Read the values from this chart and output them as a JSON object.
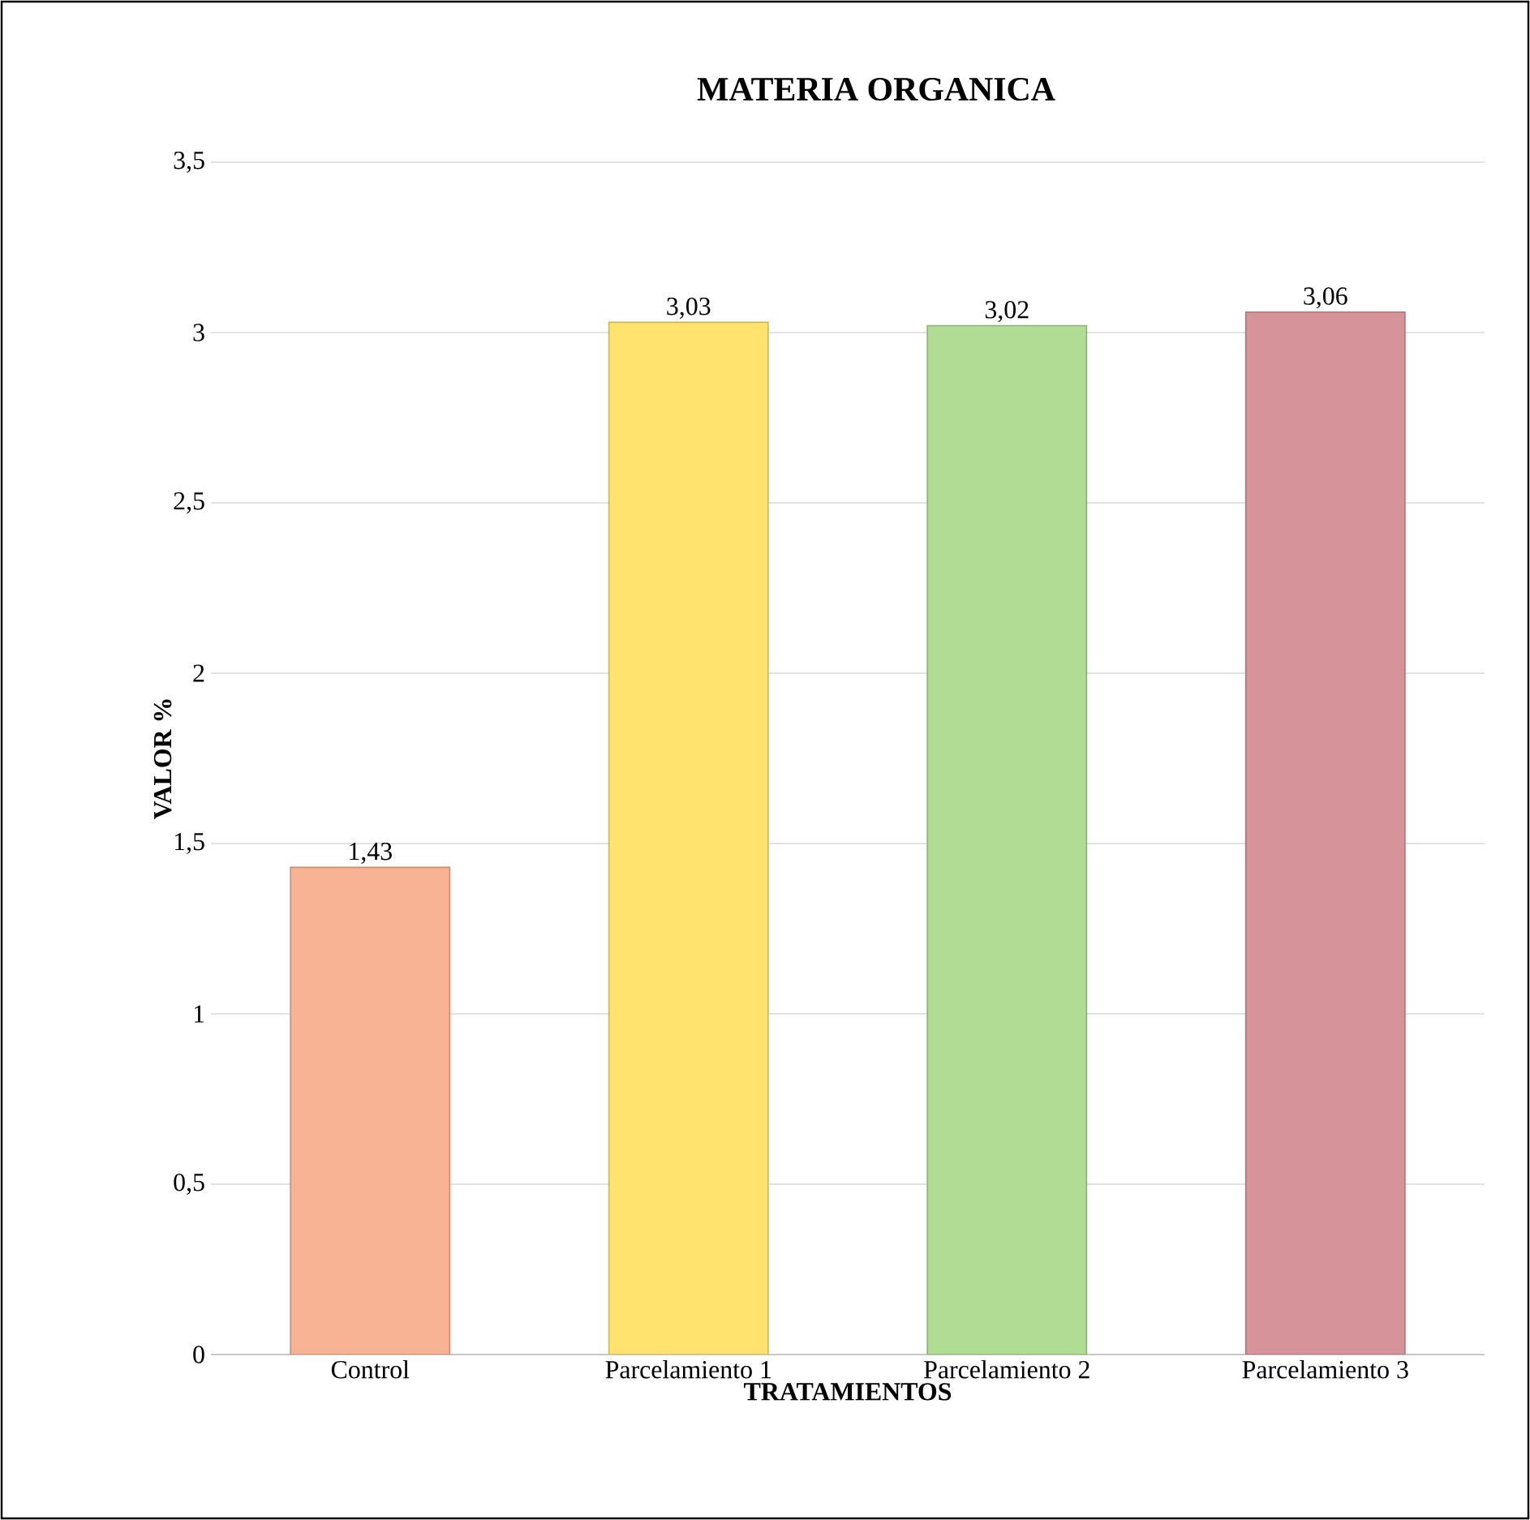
{
  "chart_data": {
    "type": "bar",
    "title": "MATERIA ORGANICA",
    "xlabel": "TRATAMIENTOS",
    "ylabel": "VALOR %",
    "categories": [
      "Control",
      "Parcelamiento 1",
      "Parcelamiento 2",
      "Parcelamiento 3"
    ],
    "values": [
      1.43,
      3.03,
      3.02,
      3.06
    ],
    "colors": [
      "#f8b394",
      "#ffe36e",
      "#b0dc94",
      "#d6939a"
    ],
    "value_labels": [
      "1,43",
      "3,03",
      "3,02",
      "3,06"
    ],
    "ylim": [
      0,
      3.5
    ],
    "yticks": [
      0,
      {
        "value": 0.5,
        "label": "0,5"
      },
      1,
      {
        "value": 1.5,
        "label": "1,5"
      },
      2,
      {
        "value": 2.5,
        "label": "2,5"
      },
      3,
      {
        "value": 3.5,
        "label": "3,5"
      }
    ],
    "grid": "y"
  }
}
